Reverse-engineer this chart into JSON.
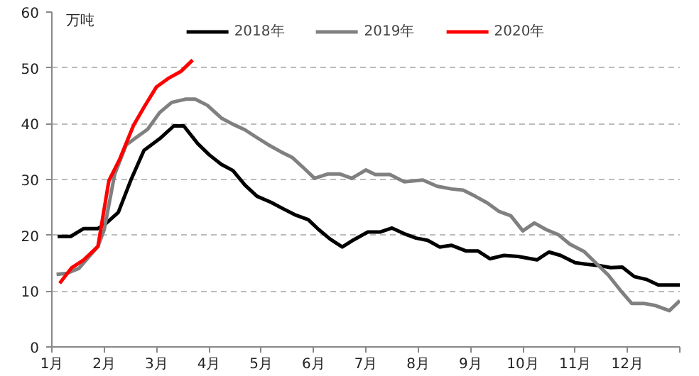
{
  "chart_data": {
    "type": "line",
    "ylabel": "万吨",
    "legend": "top",
    "grid": "y",
    "line_style": "solid",
    "marker": "none",
    "xlim": [
      1,
      13
    ],
    "xticks": [
      {
        "value": 1,
        "label": "1月"
      },
      {
        "value": 2,
        "label": "2月"
      },
      {
        "value": 3,
        "label": "3月"
      },
      {
        "value": 4,
        "label": "4月"
      },
      {
        "value": 5,
        "label": "5月"
      },
      {
        "value": 6,
        "label": "6月"
      },
      {
        "value": 7,
        "label": "7月"
      },
      {
        "value": 8,
        "label": "8月"
      },
      {
        "value": 9,
        "label": "9月"
      },
      {
        "value": 10,
        "label": "10月"
      },
      {
        "value": 11,
        "label": "11月"
      },
      {
        "value": 12,
        "label": "12月"
      },
      {
        "value": 13,
        "label": null
      }
    ],
    "ylim": [
      0,
      60
    ],
    "yticks": [
      0,
      10,
      20,
      30,
      40,
      50,
      60
    ],
    "series": [
      {
        "name": "2018年",
        "color": "#000000",
        "x": [
          1.11,
          1.36,
          1.61,
          1.88,
          2.02,
          2.27,
          2.51,
          2.76,
          3.06,
          3.33,
          3.52,
          3.79,
          4.01,
          4.24,
          4.46,
          4.69,
          4.92,
          5.19,
          5.41,
          5.64,
          5.9,
          6.09,
          6.32,
          6.55,
          6.77,
          7.04,
          7.28,
          7.5,
          7.73,
          7.96,
          8.18,
          8.41,
          8.64,
          8.91,
          9.14,
          9.37,
          9.64,
          9.91,
          10.27,
          10.5,
          10.72,
          11.0,
          11.22,
          11.45,
          11.68,
          11.9,
          12.13,
          12.36,
          12.59,
          12.81,
          13.0
        ],
        "values": [
          19.8,
          19.8,
          21.2,
          21.2,
          22,
          24.1,
          29.9,
          35.2,
          37.3,
          39.6,
          39.6,
          36.4,
          34.4,
          32.7,
          31.6,
          29,
          27,
          25.9,
          24.8,
          23.7,
          22.8,
          21.1,
          19.3,
          17.9,
          19.2,
          20.6,
          20.6,
          21.3,
          20.3,
          19.5,
          19.1,
          17.9,
          18.2,
          17.2,
          17.2,
          15.8,
          16.4,
          16.2,
          15.6,
          17,
          16.4,
          15.1,
          14.8,
          14.6,
          14.2,
          14.3,
          12.6,
          12.1,
          11.1,
          11.1,
          11.1
        ]
      },
      {
        "name": "2019年",
        "color": "#808080",
        "x": [
          1.09,
          1.29,
          1.52,
          1.88,
          2.0,
          2.2,
          2.42,
          2.65,
          2.83,
          3.06,
          3.29,
          3.56,
          3.74,
          3.97,
          4.24,
          4.46,
          4.69,
          4.92,
          5.14,
          5.37,
          5.6,
          5.82,
          6.02,
          6.28,
          6.5,
          6.73,
          7.0,
          7.18,
          7.46,
          7.73,
          8.09,
          8.36,
          8.64,
          8.86,
          9.09,
          9.32,
          9.54,
          9.77,
          10.0,
          10.22,
          10.45,
          10.68,
          10.9,
          11.17,
          11.4,
          11.63,
          11.86,
          12.08,
          12.31,
          12.54,
          12.8,
          13.0
        ],
        "values": [
          13,
          13.2,
          14.1,
          18,
          21,
          30.9,
          36.2,
          37.8,
          39,
          42,
          43.8,
          44.4,
          44.4,
          43.3,
          41,
          39.9,
          38.9,
          37.5,
          36.2,
          35,
          33.9,
          32,
          30.2,
          31,
          31,
          30.2,
          31.7,
          30.9,
          30.9,
          29.6,
          29.9,
          28.8,
          28.3,
          28.1,
          27,
          25.8,
          24.3,
          23.5,
          20.8,
          22.2,
          21,
          20.1,
          18.4,
          17.1,
          15,
          12.9,
          10.2,
          7.8,
          7.8,
          7.4,
          6.5,
          8.3
        ]
      },
      {
        "name": "2020年",
        "color": "#ff0000",
        "x": [
          1.15,
          1.38,
          1.61,
          1.88,
          2.09,
          2.29,
          2.56,
          2.77,
          3.0,
          3.24,
          3.47,
          3.69
        ],
        "values": [
          11.4,
          14.2,
          15.6,
          18,
          29.8,
          33.5,
          39.7,
          43.1,
          46.6,
          48.2,
          49.4,
          51.4
        ]
      }
    ]
  }
}
